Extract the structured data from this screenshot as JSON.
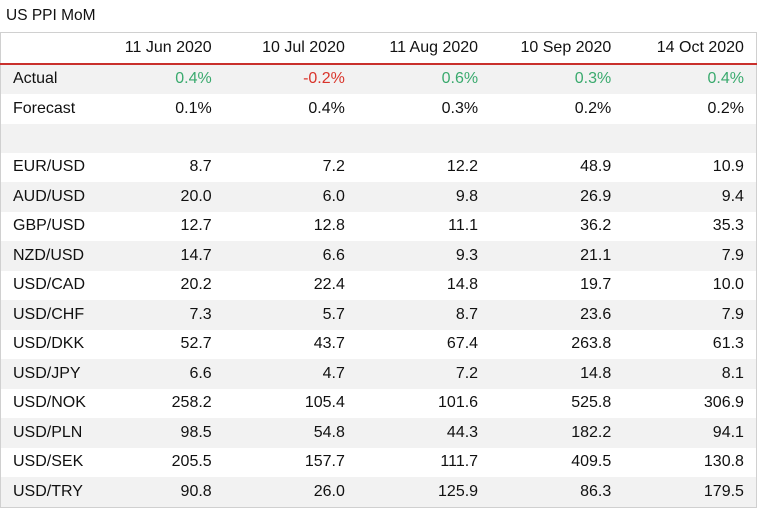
{
  "title": "US PPI MoM",
  "dates": [
    "11 Jun 2020",
    "10 Jul 2020",
    "11 Aug 2020",
    "10 Sep 2020",
    "14 Oct 2020"
  ],
  "actual": {
    "label": "Actual",
    "values": [
      "0.4%",
      "-0.2%",
      "0.6%",
      "0.3%",
      "0.4%"
    ],
    "color_positive": "#3aaa6e",
    "color_negative": "#d9342b"
  },
  "forecast": {
    "label": "Forecast",
    "values": [
      "0.1%",
      "0.4%",
      "0.3%",
      "0.2%",
      "0.2%"
    ]
  },
  "pairs": [
    {
      "label": "EUR/USD",
      "values": [
        "8.7",
        "7.2",
        "12.2",
        "48.9",
        "10.9"
      ]
    },
    {
      "label": "AUD/USD",
      "values": [
        "20.0",
        "6.0",
        "9.8",
        "26.9",
        "9.4"
      ]
    },
    {
      "label": "GBP/USD",
      "values": [
        "12.7",
        "12.8",
        "11.1",
        "36.2",
        "35.3"
      ]
    },
    {
      "label": "NZD/USD",
      "values": [
        "14.7",
        "6.6",
        "9.3",
        "21.1",
        "7.9"
      ]
    },
    {
      "label": "USD/CAD",
      "values": [
        "20.2",
        "22.4",
        "14.8",
        "19.7",
        "10.0"
      ]
    },
    {
      "label": "USD/CHF",
      "values": [
        "7.3",
        "5.7",
        "8.7",
        "23.6",
        "7.9"
      ]
    },
    {
      "label": "USD/DKK",
      "values": [
        "52.7",
        "43.7",
        "67.4",
        "263.8",
        "61.3"
      ]
    },
    {
      "label": "USD/JPY",
      "values": [
        "6.6",
        "4.7",
        "7.2",
        "14.8",
        "8.1"
      ]
    },
    {
      "label": "USD/NOK",
      "values": [
        "258.2",
        "105.4",
        "101.6",
        "525.8",
        "306.9"
      ]
    },
    {
      "label": "USD/PLN",
      "values": [
        "98.5",
        "54.8",
        "44.3",
        "182.2",
        "94.1"
      ]
    },
    {
      "label": "USD/SEK",
      "values": [
        "205.5",
        "157.7",
        "111.7",
        "409.5",
        "130.8"
      ]
    },
    {
      "label": "USD/TRY",
      "values": [
        "90.8",
        "26.0",
        "125.9",
        "86.3",
        "179.5"
      ]
    }
  ]
}
